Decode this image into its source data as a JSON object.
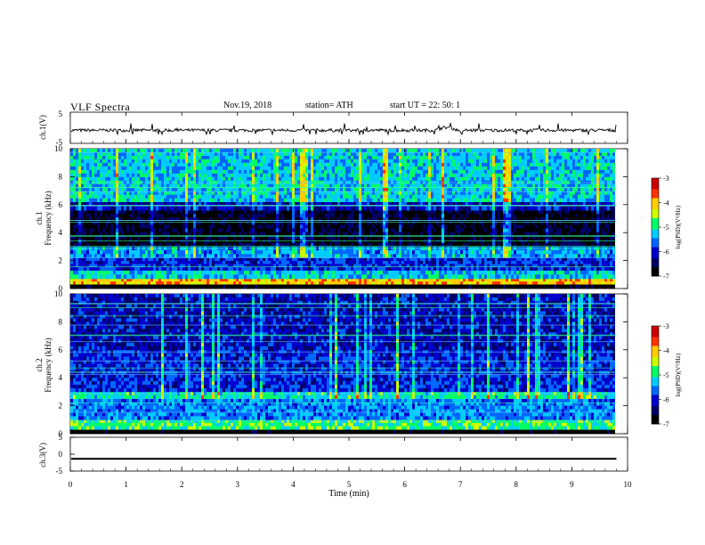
{
  "header": {
    "title": "VLF  Spectra",
    "date": "Nov.19, 2018",
    "station": "station= ATH",
    "start_ut": "start  UT  =   22: 50: 1"
  },
  "chart_data": [
    {
      "type": "line",
      "panel": "ch1-waveform",
      "ylabel": "ch.1(V)",
      "ylim": [
        -5,
        5
      ],
      "y_tick_labels": [
        "5",
        "-5"
      ],
      "xlim": [
        0,
        10
      ],
      "series": [
        {
          "values_mean_v": -0.8,
          "values_range_v": [
            -2.1,
            0.4
          ]
        }
      ],
      "annotations": "near-constant trace with sparse spikes; small bump near 6.7 min"
    },
    {
      "type": "heatmap",
      "panel": "ch1-spectrogram",
      "ylabel": "ch.1\nFrequency  (kHz)",
      "ylim": [
        0,
        10
      ],
      "y_tick_labels": [
        "0",
        "2",
        "4",
        "6",
        "8",
        "10"
      ],
      "xlim": [
        0,
        9.8
      ],
      "color_scale": "log(PSD)(V²/Hz)",
      "zlim": [
        -7,
        -3
      ],
      "colorbar_tick_labels": [
        "-3",
        "-4",
        "-5",
        "-6",
        "-7"
      ],
      "frequency_bands_khz": [
        {
          "range": [
            0.0,
            0.3
          ],
          "level": -7.0
        },
        {
          "range": [
            0.3,
            0.7
          ],
          "level": -4.0
        },
        {
          "range": [
            0.7,
            1.3
          ],
          "level": -5.2
        },
        {
          "range": [
            1.3,
            2.2
          ],
          "level": -5.9
        },
        {
          "range": [
            2.2,
            3.0
          ],
          "level": -5.4
        },
        {
          "range": [
            3.0,
            5.6
          ],
          "level": -6.7
        },
        {
          "range": [
            5.6,
            6.2
          ],
          "level": -6.1
        },
        {
          "range": [
            6.2,
            10.0
          ],
          "level": -5.2
        }
      ]
    },
    {
      "type": "heatmap",
      "panel": "ch2-spectrogram",
      "ylabel": "ch.2\nFrequency  (kHz)",
      "ylim": [
        0,
        10
      ],
      "y_tick_labels": [
        "0",
        "2",
        "4",
        "6",
        "8",
        "10"
      ],
      "xlim": [
        0,
        9.8
      ],
      "color_scale": "log(PSD)(V²/Hz)",
      "zlim": [
        -7,
        -3
      ],
      "colorbar_tick_labels": [
        "-3",
        "-4",
        "-5",
        "-6",
        "-7"
      ],
      "frequency_bands_khz": [
        {
          "range": [
            0.0,
            0.3
          ],
          "level": -7.0
        },
        {
          "range": [
            0.3,
            1.0
          ],
          "level": -4.8
        },
        {
          "range": [
            1.0,
            2.5
          ],
          "level": -5.5
        },
        {
          "range": [
            2.5,
            3.0
          ],
          "level": -5.0
        },
        {
          "range": [
            3.0,
            6.0
          ],
          "level": -5.9
        },
        {
          "range": [
            6.0,
            10.0
          ],
          "level": -6.1
        }
      ]
    },
    {
      "type": "line",
      "panel": "ch3-waveform",
      "ylabel": "ch.3(V)",
      "ylim": [
        -5,
        5
      ],
      "y_tick_labels": [
        "5",
        "0",
        "-5"
      ],
      "xlim": [
        0,
        10
      ],
      "series": [
        {
          "values_mean_v": -1.3,
          "values_range_v": [
            -1.5,
            -1.1
          ]
        }
      ]
    }
  ],
  "x_axis": {
    "label": "Time  (min)",
    "range": [
      0,
      10
    ],
    "ticks": [
      "0",
      "1",
      "2",
      "3",
      "4",
      "5",
      "6",
      "7",
      "8",
      "9",
      "10"
    ]
  },
  "colormap": [
    "#000000",
    "#000066",
    "#0000cc",
    "#0066ff",
    "#00ccff",
    "#00ff66",
    "#ccff00",
    "#ffcc00",
    "#ff3300",
    "#cc0000",
    "#ffffff"
  ]
}
